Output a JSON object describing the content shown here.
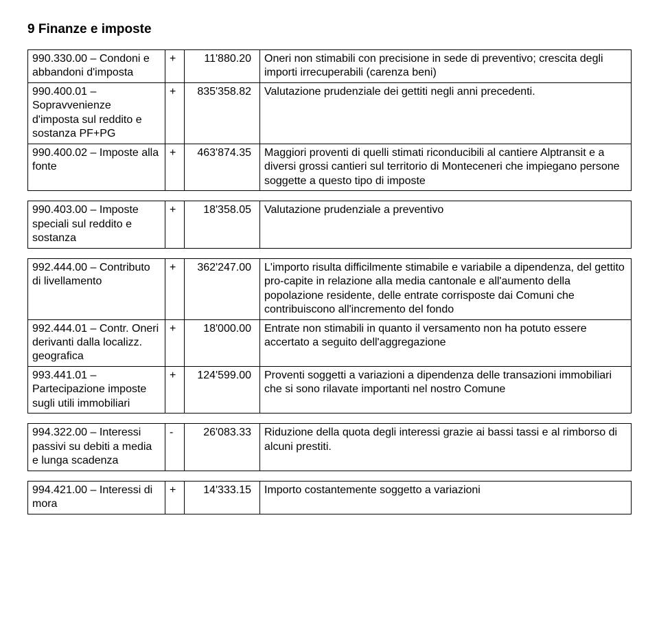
{
  "heading": "9 Finanze e imposte",
  "groups": [
    {
      "rows": [
        {
          "label": "990.330.00 – Condoni e abbandoni d'imposta",
          "sign": "+",
          "amount": "11'880.20",
          "desc": "Oneri non stimabili con precisione in sede di preventivo; crescita degli importi irrecuperabili (carenza beni)"
        },
        {
          "label": "990.400.01 – Sopravvenienze d'imposta sul reddito e sostanza PF+PG",
          "sign": "+",
          "amount": "835'358.82",
          "desc": "Valutazione prudenziale dei gettiti negli anni precedenti."
        },
        {
          "label": "990.400.02 – Imposte alla fonte",
          "sign": "+",
          "amount": "463'874.35",
          "desc": "Maggiori proventi di quelli stimati riconducibili al cantiere Alptransit e a diversi grossi cantieri sul territorio di Monteceneri che impiegano persone soggette a questo tipo di imposte"
        }
      ]
    },
    {
      "rows": [
        {
          "label": "990.403.00 – Imposte speciali sul reddito e sostanza",
          "sign": "+",
          "amount": "18'358.05",
          "desc": "Valutazione prudenziale a preventivo"
        }
      ]
    },
    {
      "rows": [
        {
          "label": "992.444.00 – Contributo di livellamento",
          "sign": "+",
          "amount": "362'247.00",
          "desc": "L'importo risulta difficilmente stimabile e variabile a dipendenza, del gettito pro-capite in relazione alla media cantonale e all'aumento della popolazione residente, delle entrate corrisposte dai Comuni che contribuiscono all'incremento del fondo"
        },
        {
          "label": "992.444.01 – Contr. Oneri derivanti dalla localizz. geografica",
          "sign": "+",
          "amount": "18'000.00",
          "desc": "Entrate non stimabili in quanto il versamento non ha potuto essere accertato a seguito dell'aggregazione"
        },
        {
          "label": "993.441.01 – Partecipazione imposte sugli utili immobiliari",
          "sign": "+",
          "amount": "124'599.00",
          "desc": "Proventi soggetti a variazioni a dipendenza delle transazioni immobiliari che si sono rilavate importanti nel nostro Comune"
        }
      ]
    },
    {
      "rows": [
        {
          "label": "994.322.00 – Interessi passivi su debiti a media e lunga scadenza",
          "sign": "-",
          "amount": "26'083.33",
          "desc": "Riduzione della quota degli interessi grazie ai bassi tassi e al rimborso di alcuni prestiti."
        }
      ]
    },
    {
      "rows": [
        {
          "label": "994.421.00 – Interessi di mora",
          "sign": "+",
          "amount": "14'333.15",
          "desc": "Importo costantemente soggetto a variazioni"
        }
      ]
    }
  ]
}
